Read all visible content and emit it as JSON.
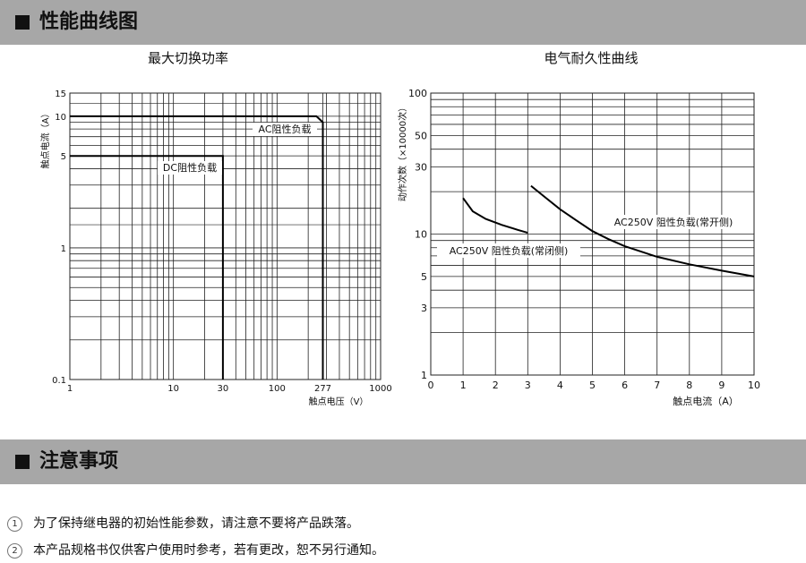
{
  "sections": {
    "performance_title": "性能曲线图",
    "notes_title": "注意事项"
  },
  "notes": [
    {
      "num": "1",
      "text": "为了保持继电器的初始性能参数，请注意不要将产品跌落。"
    },
    {
      "num": "2",
      "text": "本产品规格书仅供客户使用时参考，若有更改，恕不另行通知。"
    }
  ],
  "chart_data": [
    {
      "type": "line",
      "title": "最大切换功率",
      "xlabel": "触点电压（V）",
      "ylabel": "触点电流（A）",
      "x_scale": "log",
      "y_scale": "log",
      "xlim": [
        1,
        1000
      ],
      "ylim": [
        0.1,
        15
      ],
      "x_ticks": [
        "1",
        "10",
        "30",
        "100",
        "277",
        "1000"
      ],
      "y_ticks": [
        "0.1",
        "1",
        "5",
        "10",
        "15"
      ],
      "series": [
        {
          "name": "DC阻性负载",
          "points": [
            [
              1,
              5
            ],
            [
              30,
              5
            ],
            [
              30,
              0.1
            ]
          ]
        },
        {
          "name": "AC阻性负载",
          "points": [
            [
              1,
              10
            ],
            [
              240,
              10
            ],
            [
              277,
              9
            ],
            [
              277,
              0.1
            ]
          ]
        }
      ]
    },
    {
      "type": "line",
      "title": "电气耐久性曲线",
      "xlabel": "触点电流（A）",
      "ylabel": "动作次数（×10000次）",
      "x_scale": "linear",
      "y_scale": "log",
      "xlim": [
        0,
        10
      ],
      "ylim": [
        1,
        100
      ],
      "x_ticks": [
        "0",
        "1",
        "2",
        "3",
        "4",
        "5",
        "6",
        "7",
        "8",
        "9",
        "10"
      ],
      "y_ticks": [
        "1",
        "3",
        "5",
        "10",
        "30",
        "50",
        "100"
      ],
      "series": [
        {
          "name": "AC250V 阻性负载(常闭侧)",
          "points": [
            [
              1,
              18
            ],
            [
              1.3,
              14.5
            ],
            [
              1.7,
              12.8
            ],
            [
              2.2,
              11.6
            ],
            [
              2.7,
              10.7
            ],
            [
              3,
              10.2
            ]
          ]
        },
        {
          "name": "AC250V 阻性负载(常开侧)",
          "points": [
            [
              3.1,
              22
            ],
            [
              3.5,
              18.5
            ],
            [
              4,
              15
            ],
            [
              4.5,
              12.5
            ],
            [
              5,
              10.5
            ],
            [
              5.5,
              9.2
            ],
            [
              6,
              8.2
            ],
            [
              7,
              6.9
            ],
            [
              8,
              6.1
            ],
            [
              9,
              5.5
            ],
            [
              10,
              5
            ]
          ]
        }
      ]
    }
  ]
}
